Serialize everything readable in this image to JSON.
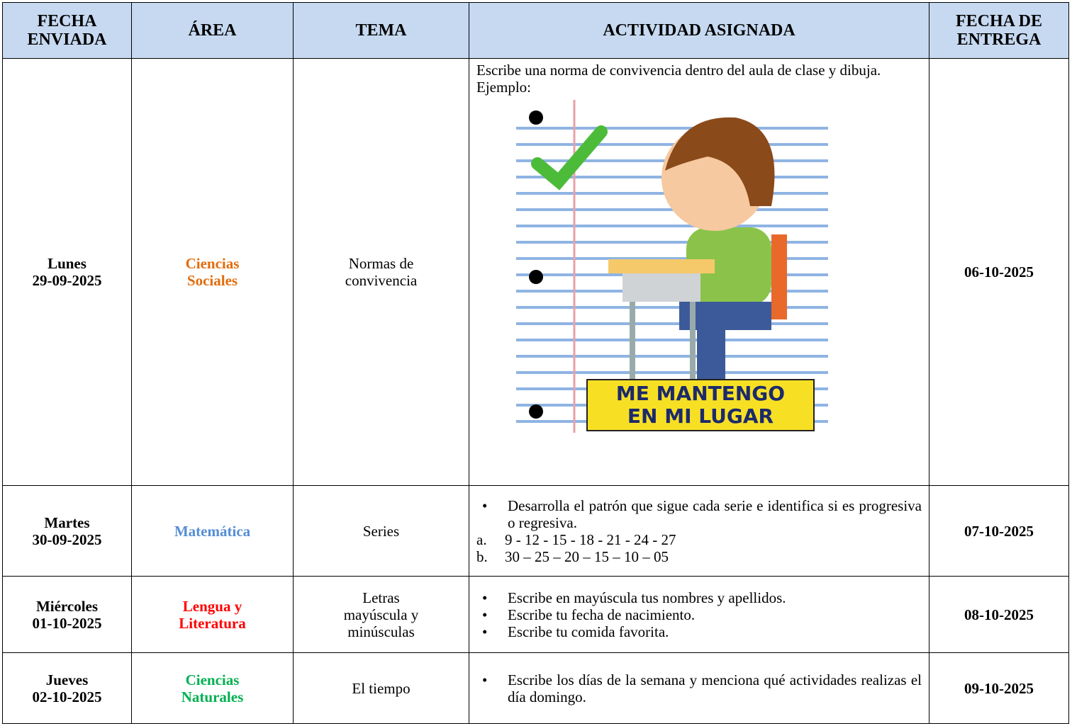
{
  "table": {
    "headers": [
      [
        "FECHA",
        "ENVIADA"
      ],
      [
        "ÁREA"
      ],
      [
        "TEMA"
      ],
      [
        "ACTIVIDAD ASIGNADA"
      ],
      [
        "FECHA DE",
        "ENTREGA"
      ]
    ],
    "rows": [
      {
        "day": "Lunes",
        "date": "29-09-2025",
        "area": [
          "Ciencias",
          "Sociales"
        ],
        "topic": [
          "Normas de",
          "convivencia"
        ],
        "activity": {
          "text": [
            "Escribe una norma de convivencia dentro del aula de clase y dibuja.",
            "Ejemplo:"
          ],
          "image_caption": [
            "ME MANTENGO",
            "EN MI LUGAR"
          ]
        },
        "due": "06-10-2025"
      },
      {
        "day": "Martes",
        "date": "30-09-2025",
        "area": [
          "Matemática"
        ],
        "topic": [
          "Series"
        ],
        "activity": {
          "bullets": [
            "Desarrolla el patrón que sigue cada serie e identifica si es progresiva o regresiva."
          ],
          "items": [
            {
              "marker": "a.",
              "text": "9 - 12 - 15 - 18 - 21 - 24 - 27"
            },
            {
              "marker": "b.",
              "text": "30 – 25 – 20 – 15 – 10 – 05"
            }
          ]
        },
        "due": "07-10-2025"
      },
      {
        "day": "Miércoles",
        "date": "01-10-2025",
        "area": [
          "Lengua y",
          "Literatura"
        ],
        "topic": [
          "Letras",
          "mayúscula y",
          "minúsculas"
        ],
        "activity": {
          "bullets": [
            "Escribe en mayúscula tus nombres y apellidos.",
            "Escribe tu fecha de nacimiento.",
            "Escribe tu comida favorita."
          ]
        },
        "due": "08-10-2025"
      },
      {
        "day": "Jueves",
        "date": "02-10-2025",
        "area": [
          "Ciencias",
          "Naturales"
        ],
        "topic": [
          "El tiempo"
        ],
        "activity": {
          "bullets": [
            "Escribe los días de la semana y menciona qué actividades realizas el día domingo."
          ]
        },
        "due": "09-10-2025"
      }
    ]
  }
}
